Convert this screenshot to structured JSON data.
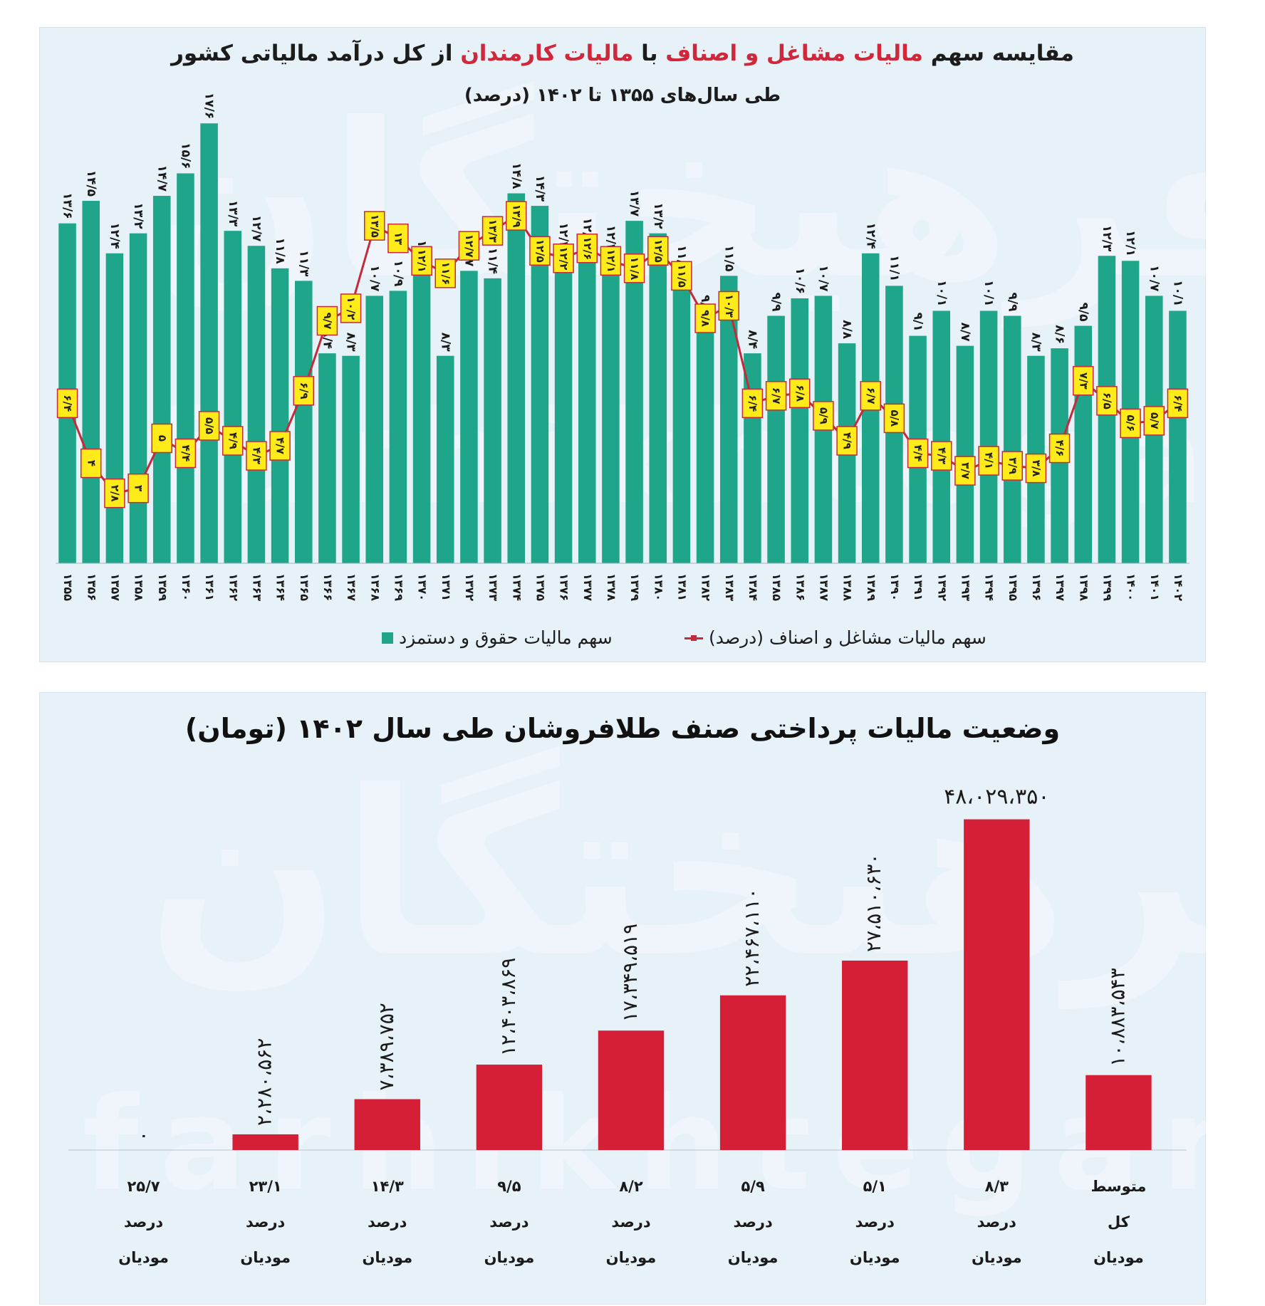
{
  "chart1": {
    "title_part1": "مقایسه سهم ",
    "title_highlight1": "مالیات مشاغل و اصناف",
    "title_part2": " با ",
    "title_highlight2": "مالیات کارمندان",
    "title_part3": " از کل درآمد مالیاتی کشور",
    "subtitle": "طی سال‌های ۱۳۵۵ تا ۱۴۰۲ (درصد)",
    "legend_line": "سهم مالیات مشاغل و اصناف (درصد)",
    "legend_bar": "سهم مالیات حقوق و دستمزد",
    "watermark_fa": "فرهیختگان",
    "watermark_en": "farhikhtegan",
    "colors": {
      "bar": "#1fa58a",
      "line": "#c52a3a",
      "label_box": "#ffeb1a",
      "panel": "#e7f1f8"
    }
  },
  "chart2": {
    "title": "وضعیت مالیات پرداختی صنف طلافروشان طی سال ۱۴۰۲ (تومان)",
    "watermark_fa": "فرهیختگان",
    "watermark_en": "farhikhtegan",
    "colors": {
      "bar": "#d41f36",
      "panel": "#e7f1f8"
    }
  },
  "chart_data": [
    {
      "type": "bar",
      "title": "مقایسه سهم مالیات مشاغل و اصناف با مالیات کارمندان از کل درآمد مالیاتی کشور",
      "subtitle": "طی سال‌های ۱۳۵۵ تا ۱۴۰۲ (درصد)",
      "categories": [
        "۱۳۵۵",
        "۱۳۵۶",
        "۱۳۵۷",
        "۱۳۵۸",
        "۱۳۵۹",
        "۱۳۶۰",
        "۱۳۶۱",
        "۱۳۶۲",
        "۱۳۶۳",
        "۱۳۶۴",
        "۱۳۶۵",
        "۱۳۶۶",
        "۱۳۶۷",
        "۱۳۶۸",
        "۱۳۶۹",
        "۱۳۷۰",
        "۱۳۷۱",
        "۱۳۷۲",
        "۱۳۷۳",
        "۱۳۷۴",
        "۱۳۷۵",
        "۱۳۷۶",
        "۱۳۷۷",
        "۱۳۷۸",
        "۱۳۷۹",
        "۱۳۸۰",
        "۱۳۸۱",
        "۱۳۸۲",
        "۱۳۸۳",
        "۱۳۸۴",
        "۱۳۸۵",
        "۱۳۸۶",
        "۱۳۸۷",
        "۱۳۸۸",
        "۱۳۸۹",
        "۱۳۹۰",
        "۱۳۹۱",
        "۱۳۹۲",
        "۱۳۹۳",
        "۱۳۹۴",
        "۱۳۹۵",
        "۱۳۹۶",
        "۱۳۹۷",
        "۱۳۹۸",
        "۱۳۹۹",
        "۱۴۰۰",
        "۱۴۰۱",
        "۱۴۰۲"
      ],
      "series": [
        {
          "name": "سهم مالیات حقوق و دستمزد",
          "kind": "bar",
          "values": [
            13.6,
            14.5,
            12.4,
            13.2,
            14.7,
            15.6,
            17.6,
            13.3,
            12.7,
            11.8,
            11.3,
            8.4,
            8.3,
            10.7,
            10.9,
            11.7,
            8.3,
            11.7,
            11.4,
            14.8,
            14.3,
            12.4,
            12.6,
            12.3,
            13.7,
            13.2,
            11.5,
            9.8,
            11.5,
            8.4,
            9.9,
            10.6,
            10.7,
            8.8,
            12.4,
            11.1,
            9.1,
            10.1,
            8.7,
            10.1,
            9.9,
            8.3,
            8.6,
            9.5,
            12.3,
            12.1,
            10.7,
            10.1
          ],
          "labels": [
            "۱۳/۶",
            "۱۴/۵",
            "۱۲/۴",
            "۱۳/۲",
            "۱۴/۷",
            "۱۵/۶",
            "۱۷/۶",
            "۱۳/۳",
            "۱۲/۷",
            "۱۱/۸",
            "۱۱/۳",
            "۸/۴",
            "۸/۳",
            "۱۰/۷",
            "۱۰/۹",
            "۱۱/۷",
            "۸/۳",
            "۱۱/۷",
            "۱۱/۴",
            "۱۴/۸",
            "۱۴/۳",
            "۱۲/۴",
            "۱۲/۶",
            "۱۲/۳",
            "۱۳/۷",
            "۱۳/۲",
            "۱۱/۵",
            "۹/۸",
            "۱۱/۵",
            "۸/۴",
            "۹/۹",
            "۱۰/۶",
            "۱۰/۷",
            "۸/۸",
            "۱۲/۴",
            "۱۱/۱",
            "۹/۱",
            "۱۰/۱",
            "۸/۷",
            "۱۰/۱",
            "۹/۹",
            "۸/۳",
            "۸/۶",
            "۹/۵",
            "۱۲/۳",
            "۱۲/۱",
            "۱۰/۷",
            "۱۰/۱"
          ]
        },
        {
          "name": "سهم مالیات مشاغل و اصناف (درصد)",
          "kind": "line",
          "values": [
            6.4,
            4,
            2.8,
            3,
            5,
            4.4,
            5.5,
            4.9,
            4.3,
            4.7,
            6.9,
            9.7,
            10.2,
            13.5,
            13,
            12.1,
            11.6,
            12.7,
            13.3,
            13.9,
            12.5,
            12.2,
            12.6,
            12.1,
            11.8,
            12.5,
            11.5,
            9.8,
            10.3,
            6.4,
            6.7,
            6.8,
            5.9,
            4.9,
            6.7,
            5.8,
            4.4,
            4.3,
            3.7,
            4.1,
            3.9,
            3.8,
            4.6,
            7.3,
            6.5,
            5.6,
            5.7,
            6.4
          ],
          "labels": [
            "۶/۴",
            "۴",
            "۲/۸",
            "۳",
            "۵",
            "۴/۴",
            "۵/۵",
            "۴/۹",
            "۴/۳",
            "۴/۷",
            "۶/۹",
            "۹/۷",
            "۱۰/۲",
            "۱۳/۵",
            "۱۳",
            "۱۲/۱",
            "۱۱/۶",
            "۱۲/۷",
            "۱۳/۳",
            "۱۳/۹",
            "۱۲/۵",
            "۱۲/۲",
            "۱۲/۶",
            "۱۲/۱",
            "۱۱/۸",
            "۱۲/۵",
            "۱۱/۵",
            "۹/۸",
            "۱۰/۳",
            "۶/۴",
            "۶/۷",
            "۶/۸",
            "۵/۹",
            "۴/۹",
            "۶/۷",
            "۵/۸",
            "۴/۴",
            "۴/۳",
            "۳/۷",
            "۴/۱",
            "۳/۹",
            "۳/۸",
            "۴/۶",
            "۷/۳",
            "۶/۵",
            "۵/۶",
            "۵/۷",
            "۶/۴"
          ]
        }
      ],
      "ylim": [
        0,
        18
      ],
      "legend": "bottom",
      "grid": false
    },
    {
      "type": "bar",
      "title": "وضعیت مالیات پرداختی صنف طلافروشان طی سال ۱۴۰۲ (تومان)",
      "categories": [
        [
          "۲۵/۷",
          "درصد",
          "مودیان"
        ],
        [
          "۲۳/۱",
          "درصد",
          "مودیان"
        ],
        [
          "۱۴/۳",
          "درصد",
          "مودیان"
        ],
        [
          "۹/۵",
          "درصد",
          "مودیان"
        ],
        [
          "۸/۲",
          "درصد",
          "مودیان"
        ],
        [
          "۵/۹",
          "درصد",
          "مودیان"
        ],
        [
          "۵/۱",
          "درصد",
          "مودیان"
        ],
        [
          "۸/۳",
          "درصد",
          "مودیان"
        ],
        [
          "متوسط",
          "کل",
          "مودیان"
        ]
      ],
      "values": [
        0,
        2280562,
        7389752,
        12403869,
        17349519,
        22467110,
        27510630,
        48029350,
        10883543
      ],
      "labels": [
        "۰",
        "۲،۲۸۰،۵۶۲",
        "۷،۳۸۹،۷۵۲",
        "۱۲،۴۰۳،۸۶۹",
        "۱۷،۳۴۹،۵۱۹",
        "۲۲،۴۶۷،۱۱۰",
        "۲۷،۵۱۰،۶۳۰",
        "۴۸،۰۲۹،۳۵۰",
        "۱۰،۸۸۳،۵۴۳"
      ],
      "ylim": [
        0,
        50000000
      ],
      "grid": false
    }
  ]
}
